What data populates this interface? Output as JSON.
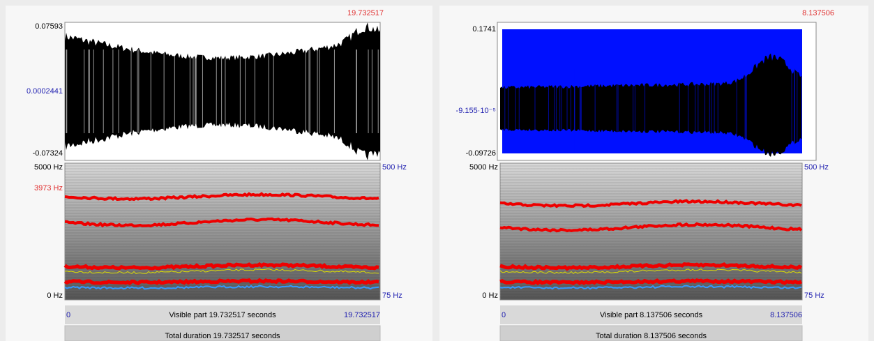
{
  "panels": [
    {
      "time_top": "19.732517",
      "wave_max": "0.07593",
      "wave_mid": "0.0002441",
      "wave_min": "-0.07324",
      "spec_max": "5000 Hz",
      "cursor_frequency": "3973 Hz",
      "spec_min": "0 Hz",
      "pitch_max": "500 Hz",
      "pitch_min": "75 Hz",
      "start": "0",
      "visible": "Visible part 19.732517 seconds",
      "end": "19.732517",
      "total": "Total duration 19.732517 seconds"
    },
    {
      "time_top": "8.137506",
      "wave_max": "0.1741",
      "wave_mid": "-9.155·10⁻⁵",
      "wave_min": "-0.09726",
      "spec_max": "5000 Hz",
      "spec_min": "0 Hz",
      "pitch_max": "500 Hz",
      "pitch_min": "75 Hz",
      "start": "0",
      "visible": "Visible part 8.137506 seconds",
      "end": "8.137506",
      "total": "Total duration 8.137506 seconds"
    }
  ]
}
